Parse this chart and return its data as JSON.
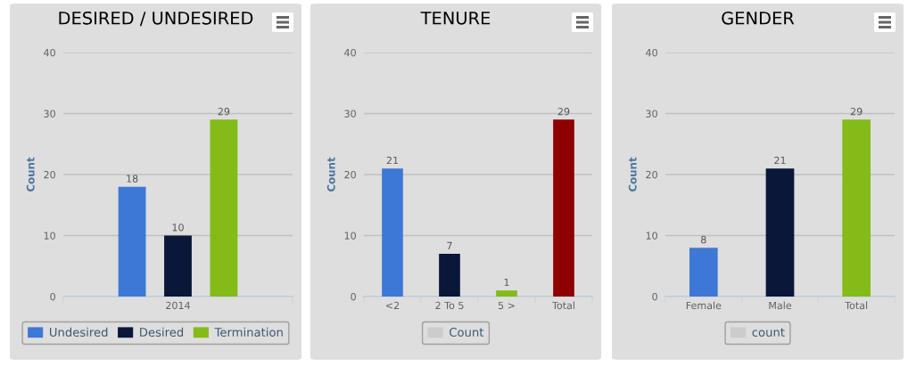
{
  "chart_data": [
    {
      "type": "bar",
      "title": "DESIRED / UNDESIRED",
      "ylabel": "Count",
      "categories": [
        "2014"
      ],
      "series": [
        {
          "name": "Undesired",
          "color": "#3e78d6",
          "values": [
            18
          ]
        },
        {
          "name": "Desired",
          "color": "#0b1739",
          "values": [
            10
          ]
        },
        {
          "name": "Termination",
          "color": "#84bb19",
          "values": [
            29
          ]
        }
      ],
      "ylim": [
        0,
        40
      ],
      "yticks": [
        0,
        10,
        20,
        30,
        40
      ],
      "grid": "y",
      "legend": "bottom",
      "data_labels": true
    },
    {
      "type": "bar",
      "title": "TENURE",
      "ylabel": "Count",
      "categories": [
        "<2",
        "2 To 5",
        "5 >",
        "Total"
      ],
      "series": [
        {
          "name": "Count",
          "color": "#cccccc",
          "colors": [
            "#3e78d6",
            "#0b1739",
            "#84bb19",
            "#8f0000"
          ],
          "values": [
            21,
            7,
            1,
            29
          ]
        }
      ],
      "ylim": [
        0,
        40
      ],
      "yticks": [
        0,
        10,
        20,
        30,
        40
      ],
      "grid": "y",
      "legend": "bottom",
      "data_labels": true
    },
    {
      "type": "bar",
      "title": "GENDER",
      "ylabel": "Count",
      "categories": [
        "Female",
        "Male",
        "Total"
      ],
      "series": [
        {
          "name": "count",
          "color": "#cccccc",
          "colors": [
            "#3e78d6",
            "#0b1739",
            "#84bb19"
          ],
          "values": [
            8,
            21,
            29
          ]
        }
      ],
      "ylim": [
        0,
        40
      ],
      "yticks": [
        0,
        10,
        20,
        30,
        40
      ],
      "grid": "y",
      "legend": "bottom",
      "data_labels": true
    }
  ]
}
